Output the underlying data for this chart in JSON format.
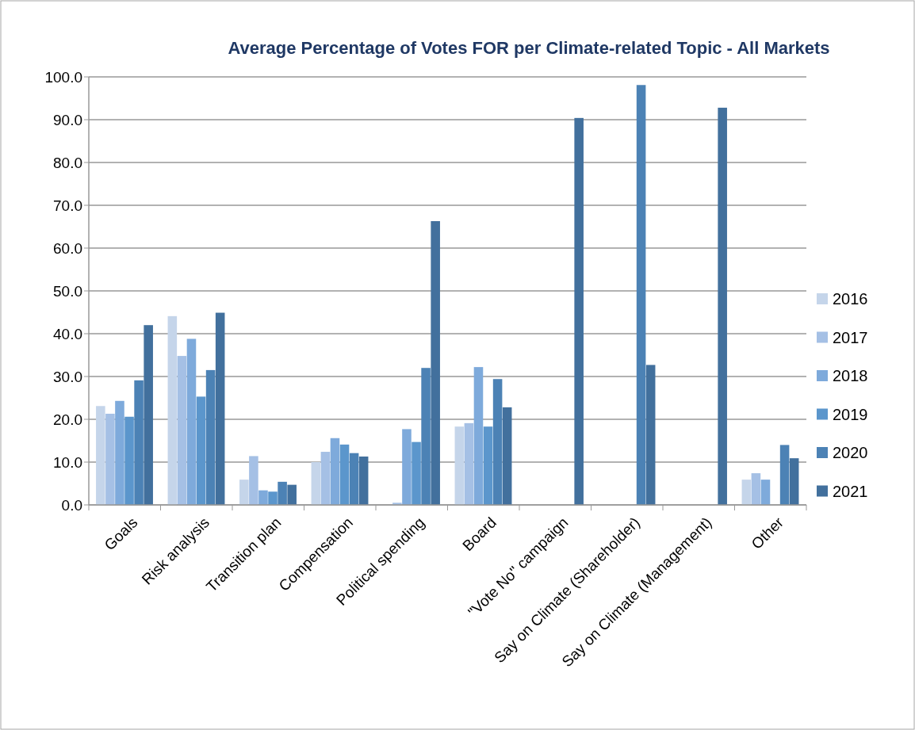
{
  "chart_data": {
    "type": "bar",
    "title": "Average Percentage of Votes FOR per Climate-related Topic - All Markets",
    "categories": [
      "Goals",
      "Risk analysis",
      "Transition plan",
      "Compensation",
      "Political spending",
      "Board",
      "\"Vote No\" campaign",
      "Say on Climate (Shareholder)",
      "Say on Climate (Management)",
      "Other"
    ],
    "series": [
      {
        "name": "2016",
        "color": "#c5d5ea",
        "values": [
          23.1,
          44.1,
          5.9,
          10.0,
          null,
          18.3,
          null,
          null,
          null,
          5.9
        ]
      },
      {
        "name": "2017",
        "color": "#a5c0e5",
        "values": [
          21.3,
          34.8,
          11.4,
          12.4,
          0.5,
          19.1,
          null,
          null,
          null,
          7.4
        ]
      },
      {
        "name": "2018",
        "color": "#7eaadb",
        "values": [
          24.3,
          38.8,
          3.4,
          15.6,
          17.7,
          32.2,
          null,
          null,
          null,
          5.9
        ]
      },
      {
        "name": "2019",
        "color": "#5b96cc",
        "values": [
          20.6,
          25.3,
          3.1,
          14.1,
          14.7,
          18.3,
          null,
          null,
          null,
          null
        ]
      },
      {
        "name": "2020",
        "color": "#4c82b5",
        "values": [
          29.1,
          31.5,
          5.4,
          12.1,
          32.0,
          29.4,
          null,
          98.1,
          null,
          14.0
        ]
      },
      {
        "name": "2021",
        "color": "#42709d",
        "values": [
          42.0,
          44.9,
          4.7,
          11.3,
          66.3,
          22.8,
          90.4,
          32.7,
          92.8,
          10.9
        ]
      }
    ],
    "ylim": [
      0,
      100
    ],
    "yticks": [
      {
        "value": 0,
        "label": "0.0"
      },
      {
        "value": 10,
        "label": "10.0"
      },
      {
        "value": 20,
        "label": "20.0"
      },
      {
        "value": 30,
        "label": "30.0"
      },
      {
        "value": 40,
        "label": "40.0"
      },
      {
        "value": 50,
        "label": "50.0"
      },
      {
        "value": 60,
        "label": "60.0"
      },
      {
        "value": 70,
        "label": "70.0"
      },
      {
        "value": 80,
        "label": "80.0"
      },
      {
        "value": 90,
        "label": "90.0"
      },
      {
        "value": 100,
        "label": "100.0"
      }
    ],
    "grid": "y",
    "legend": "right"
  }
}
